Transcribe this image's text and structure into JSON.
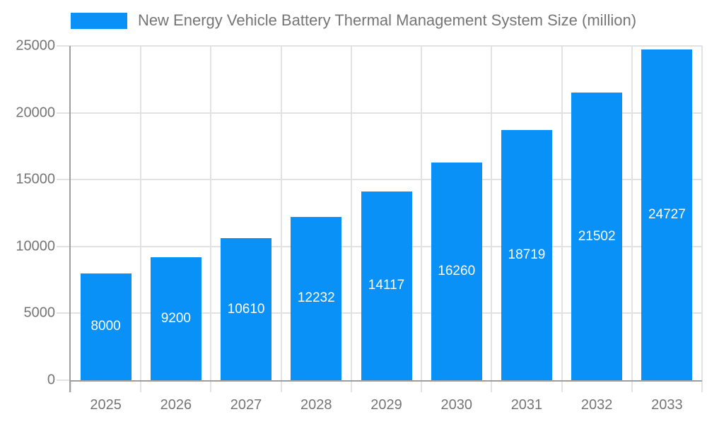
{
  "chart_data": {
    "type": "bar",
    "title": "New Energy Vehicle Battery Thermal Management System Size (million)",
    "categories": [
      "2025",
      "2026",
      "2027",
      "2028",
      "2029",
      "2030",
      "2031",
      "2032",
      "2033"
    ],
    "series": [
      {
        "name": "New Energy Vehicle Battery Thermal Management System Size (million)",
        "values": [
          8000,
          9200,
          10610,
          12232,
          14117,
          16260,
          18719,
          21502,
          24727
        ]
      }
    ],
    "xlabel": "",
    "ylabel": "",
    "ylim": [
      0,
      25000
    ],
    "yticks": [
      0,
      5000,
      10000,
      15000,
      20000,
      25000
    ],
    "grid": true,
    "legend_position": "top",
    "value_labels": "inside-center"
  },
  "colors": {
    "bar": "#0991f8",
    "axis_text": "#757575",
    "legend_text": "#757575",
    "bar_value_text": "#ffffff",
    "grid": "#e2e2e2",
    "axis_line": "#9e9e9e",
    "background": "#ffffff"
  }
}
